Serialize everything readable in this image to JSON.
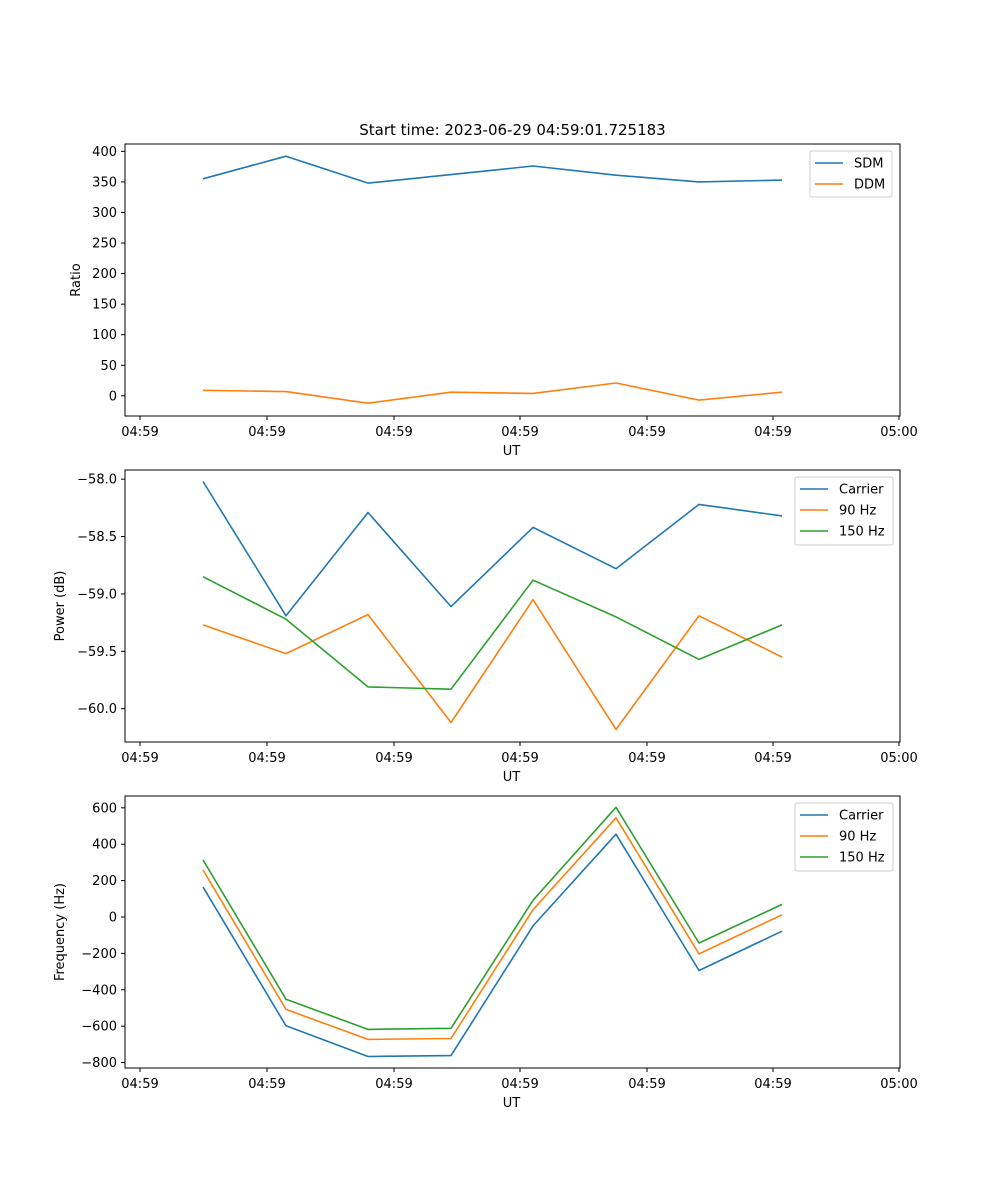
{
  "figure": {
    "title": "Start time: 2023-06-29 04:59:01.725183"
  },
  "chart_data": [
    {
      "type": "line",
      "title": "Start time: 2023-06-29 04:59:01.725183",
      "xlabel": "UT",
      "ylabel": "Ratio",
      "x_tick_labels": [
        "04:59",
        "04:59",
        "04:59",
        "04:59",
        "04:59",
        "04:59",
        "05:00"
      ],
      "y_ticks": [
        0,
        50,
        100,
        150,
        200,
        250,
        300,
        350,
        400
      ],
      "ylim": [
        -33,
        412
      ],
      "legend_position": "top-right",
      "series": [
        {
          "name": "SDM",
          "color": "#1f77b4",
          "values": [
            355,
            392,
            348,
            362,
            376,
            361,
            350,
            353
          ]
        },
        {
          "name": "DDM",
          "color": "#ff7f0e",
          "values": [
            9,
            7,
            -12,
            6,
            4,
            21,
            -7,
            6
          ]
        }
      ]
    },
    {
      "type": "line",
      "xlabel": "UT",
      "ylabel": "Power (dB)",
      "x_tick_labels": [
        "04:59",
        "04:59",
        "04:59",
        "04:59",
        "04:59",
        "04:59",
        "05:00"
      ],
      "y_ticks": [
        -60.0,
        -59.5,
        -59.0,
        -58.5,
        -58.0
      ],
      "y_tick_labels": [
        "−60.0",
        "−59.5",
        "−59.0",
        "−58.5",
        "−58.0"
      ],
      "ylim": [
        -60.29,
        -57.92
      ],
      "legend_position": "top-right",
      "series": [
        {
          "name": "Carrier",
          "color": "#1f77b4",
          "values": [
            -58.02,
            -59.19,
            -58.29,
            -59.11,
            -58.42,
            -58.78,
            -58.22,
            -58.32
          ]
        },
        {
          "name": "90 Hz",
          "color": "#ff7f0e",
          "values": [
            -59.27,
            -59.52,
            -59.18,
            -60.12,
            -59.05,
            -60.18,
            -59.19,
            -59.55
          ]
        },
        {
          "name": "150 Hz",
          "color": "#2ca02c",
          "values": [
            -58.85,
            -59.22,
            -59.81,
            -59.83,
            -58.88,
            -59.2,
            -59.57,
            -59.27
          ]
        }
      ]
    },
    {
      "type": "line",
      "xlabel": "UT",
      "ylabel": "Frequency (Hz)",
      "x_tick_labels": [
        "04:59",
        "04:59",
        "04:59",
        "04:59",
        "04:59",
        "04:59",
        "05:00"
      ],
      "y_ticks": [
        -800,
        -600,
        -400,
        -200,
        0,
        200,
        400,
        600
      ],
      "y_tick_labels": [
        "−800",
        "−600",
        "−400",
        "−200",
        "0",
        "200",
        "400",
        "600"
      ],
      "ylim": [
        -830,
        665
      ],
      "legend_position": "top-right",
      "series": [
        {
          "name": "Carrier",
          "color": "#1f77b4",
          "values": [
            165,
            -598,
            -767,
            -762,
            -49,
            455,
            -294,
            -78
          ]
        },
        {
          "name": "90 Hz",
          "color": "#ff7f0e",
          "values": [
            258,
            -508,
            -673,
            -668,
            40,
            545,
            -203,
            12
          ]
        },
        {
          "name": "150 Hz",
          "color": "#2ca02c",
          "values": [
            314,
            -452,
            -618,
            -612,
            92,
            603,
            -143,
            69
          ]
        }
      ]
    }
  ]
}
